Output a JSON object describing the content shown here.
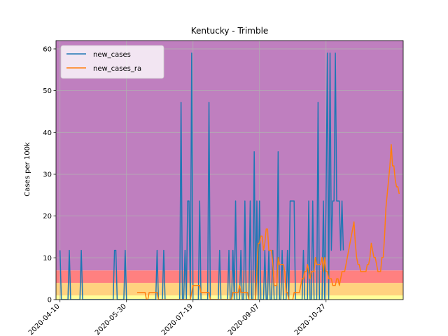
{
  "chart_data": {
    "type": "line",
    "title": "Kentucky - Trimble",
    "xlabel": "",
    "ylabel": "Cases per 100k",
    "x_start": "2020-04-10",
    "x_ticks": [
      "2020-04-10",
      "2020-05-30",
      "2020-07-19",
      "2020-09-07",
      "2020-10-27"
    ],
    "xlim": [
      "2020-04-10",
      "2020-11-13"
    ],
    "ylim": [
      0,
      62
    ],
    "yticks": [
      0,
      10,
      20,
      30,
      40,
      50,
      60
    ],
    "grid": true,
    "legend_position": "top-left",
    "bands": [
      {
        "from": 0,
        "to": 1,
        "color": "#ffff99"
      },
      {
        "from": 1,
        "to": 4,
        "color": "#ffd27f"
      },
      {
        "from": 4,
        "to": 7,
        "color": "#ff8080"
      },
      {
        "from": 7,
        "to": 62,
        "color": "#bf7fbf"
      }
    ],
    "series": [
      {
        "name": "new_cases",
        "color": "#1f77b4",
        "values": [
          11.8,
          0,
          0,
          0,
          0,
          0,
          0,
          11.8,
          0,
          0,
          0,
          0,
          0,
          0,
          0,
          0,
          11.8,
          0,
          0,
          0,
          0,
          0,
          0,
          0,
          0,
          0,
          0,
          0,
          0,
          0,
          0,
          0,
          0,
          0,
          0,
          0,
          0,
          0,
          0,
          0,
          0,
          11.8,
          11.8,
          0,
          0,
          0,
          0,
          0,
          0,
          11.8,
          0,
          0,
          0,
          0,
          0,
          0,
          0,
          0,
          0,
          0,
          0,
          0,
          0,
          0,
          0,
          0,
          0,
          0,
          0,
          0,
          0,
          0,
          0,
          11.8,
          0,
          0,
          0,
          0,
          11.8,
          0,
          0,
          0,
          0,
          0,
          0,
          0,
          0,
          0,
          0,
          0,
          0,
          47.2,
          0,
          0,
          11.8,
          0,
          23.6,
          23.6,
          0,
          59,
          0,
          0,
          0,
          0,
          0,
          23.6,
          0,
          0,
          0,
          0,
          0,
          0,
          47.2,
          0,
          0,
          0,
          0,
          0,
          0,
          0,
          11.8,
          0,
          0,
          0,
          0,
          0,
          0,
          11.8,
          0,
          0,
          11.8,
          0,
          23.6,
          0,
          0,
          0,
          11.8,
          0,
          0,
          23.6,
          0,
          0,
          0,
          23.6,
          0,
          0,
          35.4,
          0,
          23.6,
          0,
          23.6,
          0,
          0,
          0,
          11.8,
          0,
          0,
          11.8,
          0,
          0,
          11.8,
          0,
          0,
          0,
          35.4,
          0,
          0,
          11.8,
          0,
          0,
          0,
          11.8,
          0,
          23.6,
          23.6,
          23.6,
          23.6,
          0,
          0,
          0,
          0,
          0,
          0,
          11.8,
          0,
          0,
          0,
          23.6,
          0,
          0,
          23.6,
          0,
          0,
          0,
          47.2,
          0,
          0,
          0,
          23.6,
          0,
          23.6,
          59,
          0,
          59,
          11.8,
          23.6,
          23.6,
          59,
          23.6,
          23.6,
          23.6,
          11.8,
          23.6,
          11.8
        ],
        "start_offset_days": 0
      },
      {
        "name": "new_cases_ra",
        "color": "#ff7f0e",
        "values": [
          1.7,
          1.7,
          1.7,
          1.7,
          1.7,
          1.7,
          1.7,
          0,
          0,
          1.7,
          1.7,
          1.7,
          1.7,
          1.7,
          1.7,
          1.7,
          0,
          0,
          0,
          0,
          0,
          0,
          0,
          0,
          0,
          0,
          0,
          0,
          0,
          0,
          0,
          0,
          0,
          0,
          0,
          0,
          0,
          0,
          0,
          0,
          0,
          1.7,
          3.4,
          3.4,
          3.4,
          3.4,
          3.4,
          3.4,
          1.7,
          1.7,
          1.7,
          1.7,
          1.7,
          1.7,
          1.7,
          0,
          0,
          0,
          0,
          0,
          0,
          0,
          0,
          0,
          0,
          0,
          0,
          0,
          0,
          0,
          0,
          0,
          1.7,
          1.7,
          1.7,
          1.7,
          1.7,
          3.4,
          1.7,
          1.7,
          1.7,
          1.7,
          1.7,
          1.7,
          0,
          0,
          0,
          0,
          0,
          0,
          6.7,
          13.5,
          13.5,
          15.2,
          15.2,
          11.8,
          13.5,
          16.9,
          16.9,
          11.8,
          11.8,
          11.8,
          8.4,
          3.4,
          3.4,
          3.4,
          10.1,
          8.4,
          8.4,
          8.4,
          8.4,
          6.7,
          1.7,
          1.7,
          0,
          0,
          0,
          0,
          1.7,
          1.7,
          1.7,
          1.7,
          1.7,
          3.4,
          5,
          5,
          6.7,
          6.7,
          8.4,
          6.7,
          5,
          6.7,
          6.7,
          6.7,
          10.1,
          8.4,
          8.4,
          8.4,
          8.4,
          10.1,
          6.7,
          10.1,
          6.7,
          6.7,
          5,
          5,
          5,
          3.4,
          3.4,
          3.4,
          5,
          5,
          3.4,
          5,
          6.7,
          6.7,
          6.7,
          8.4,
          10.1,
          11.8,
          13.5,
          15.2,
          16.9,
          18.6,
          13.5,
          10.1,
          8.4,
          8.4,
          6.7,
          6.7,
          6.7,
          6.7,
          6.7,
          8.4,
          8.4,
          10.1,
          13.5,
          11.8,
          10.1,
          10.1,
          8.4,
          6.7,
          6.7,
          6.7,
          10.1,
          10.1,
          15.2,
          21.9,
          25.3,
          28.7,
          32,
          37.1,
          32,
          32,
          28.7,
          27,
          27,
          25.3
        ],
        "start_offset_days": 58
      }
    ]
  }
}
